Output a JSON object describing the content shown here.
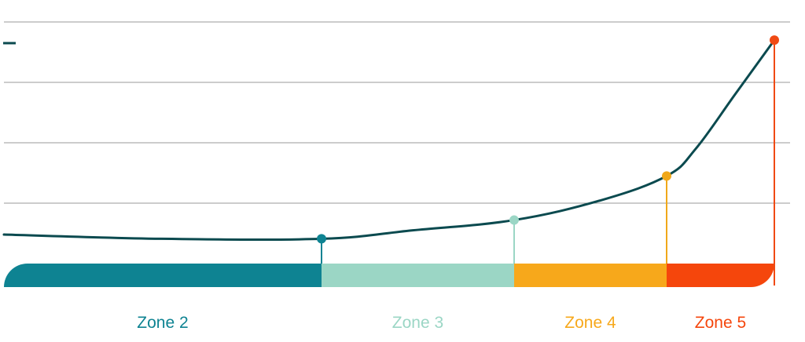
{
  "chart_data": {
    "type": "line",
    "title": "",
    "xlabel": "",
    "ylabel": "",
    "x_domain": [
      0,
      100
    ],
    "ylim": [
      0,
      4.5
    ],
    "grid": true,
    "grid_lines": [
      1,
      2,
      3,
      4
    ],
    "line_color": "#0b4a4f",
    "series": [
      {
        "values": [
          {
            "x": 0,
            "y": 0.48
          },
          {
            "x": 20,
            "y": 0.41
          },
          {
            "x": 40.4,
            "y": 0.41
          },
          {
            "x": 52,
            "y": 0.55
          },
          {
            "x": 64.9,
            "y": 0.72
          },
          {
            "x": 76,
            "y": 1.05
          },
          {
            "x": 84.3,
            "y": 1.45
          },
          {
            "x": 88,
            "y": 1.9
          },
          {
            "x": 93,
            "y": 2.8
          },
          {
            "x": 98,
            "y": 3.7
          }
        ]
      }
    ],
    "markers": [
      {
        "x": 40.4,
        "y": 0.41,
        "color": "#0e8392"
      },
      {
        "x": 64.9,
        "y": 0.72,
        "color": "#9bd6c5"
      },
      {
        "x": 84.3,
        "y": 1.45,
        "color": "#f0a81a"
      },
      {
        "x": 98,
        "y": 3.7,
        "color": "#f04a14"
      }
    ],
    "zones": [
      {
        "label": "Zone 2",
        "start": 0,
        "end": 40.4,
        "color": "#0e8392"
      },
      {
        "label": "Zone 3",
        "start": 40.4,
        "end": 64.9,
        "color": "#9bd6c5"
      },
      {
        "label": "Zone 4",
        "start": 64.9,
        "end": 84.3,
        "color": "#f7a81b"
      },
      {
        "label": "Zone 5",
        "start": 84.3,
        "end": 98,
        "color": "#f5460c"
      }
    ]
  }
}
